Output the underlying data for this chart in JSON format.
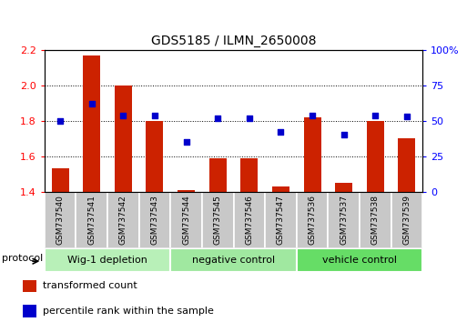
{
  "title": "GDS5185 / ILMN_2650008",
  "samples": [
    "GSM737540",
    "GSM737541",
    "GSM737542",
    "GSM737543",
    "GSM737544",
    "GSM737545",
    "GSM737546",
    "GSM737547",
    "GSM737536",
    "GSM737537",
    "GSM737538",
    "GSM737539"
  ],
  "transformed_count": [
    1.53,
    2.17,
    2.0,
    1.8,
    1.41,
    1.59,
    1.59,
    1.43,
    1.82,
    1.45,
    1.8,
    1.7
  ],
  "percentile_rank": [
    50,
    62,
    54,
    54,
    35,
    52,
    52,
    42,
    54,
    40,
    54,
    53
  ],
  "groups": [
    {
      "label": "Wig-1 depletion",
      "start": 0,
      "end": 3,
      "color": "#b8f0b8"
    },
    {
      "label": "negative control",
      "start": 4,
      "end": 7,
      "color": "#a0e8a0"
    },
    {
      "label": "vehicle control",
      "start": 8,
      "end": 11,
      "color": "#66dd66"
    }
  ],
  "ylim_left": [
    1.4,
    2.2
  ],
  "ylim_right": [
    0,
    100
  ],
  "yticks_left": [
    1.4,
    1.6,
    1.8,
    2.0,
    2.2
  ],
  "yticks_right": [
    0,
    25,
    50,
    75,
    100
  ],
  "ytick_labels_right": [
    "0",
    "25",
    "50",
    "75",
    "100%"
  ],
  "bar_color": "#cc2200",
  "dot_color": "#0000cc",
  "bar_bottom": 1.4,
  "legend_items": [
    {
      "label": "transformed count",
      "color": "#cc2200"
    },
    {
      "label": "percentile rank within the sample",
      "color": "#0000cc"
    }
  ],
  "protocol_label": "protocol",
  "sample_box_color": "#c8c8c8",
  "fig_width": 5.13,
  "fig_height": 3.54,
  "dpi": 100
}
